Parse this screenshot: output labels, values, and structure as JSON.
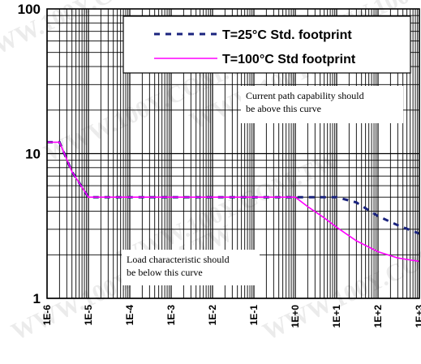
{
  "chart_data": {
    "type": "line",
    "xscale": "log",
    "yscale": "log",
    "xlim": [
      1e-06,
      1000
    ],
    "ylim": [
      1,
      100
    ],
    "grid": true,
    "yticks": [
      1,
      10,
      100
    ],
    "ytick_labels": [
      "1",
      "10",
      "100"
    ],
    "xtick_labels": [
      "1E-6",
      "1E-5",
      "1E-4",
      "1E-3",
      "1E-2",
      "1E-1",
      "1E+0",
      "1E+1",
      "1E+2",
      "1E+3"
    ],
    "legend_position": "top-right",
    "series": [
      {
        "name": "T=25°C  Std. footprint",
        "style": "dashed",
        "color": "#1a237e",
        "x": [
          1e-06,
          2e-06,
          4e-06,
          1e-05,
          0.0001,
          0.001,
          0.01,
          0.1,
          1,
          2,
          5,
          10,
          30,
          100,
          300,
          1000
        ],
        "y": [
          12,
          12,
          7.5,
          5,
          5,
          5,
          5,
          5,
          5,
          5,
          5,
          5,
          4.6,
          3.7,
          3.2,
          2.8
        ]
      },
      {
        "name": "T=100°C Std footprint",
        "style": "solid",
        "color": "#ff00ff",
        "x": [
          1e-06,
          2e-06,
          4e-06,
          1e-05,
          0.0001,
          0.001,
          0.01,
          0.1,
          1,
          2,
          5,
          10,
          30,
          100,
          300,
          1000
        ],
        "y": [
          12,
          12,
          7.5,
          5,
          5,
          5,
          5,
          5,
          5,
          4.3,
          3.6,
          3.1,
          2.5,
          2.1,
          1.9,
          1.8
        ]
      }
    ],
    "annotations": [
      {
        "lines": [
          "Current path capability should",
          "be above this curve"
        ]
      },
      {
        "lines": [
          "Load characteristic should",
          "be below this curve"
        ]
      }
    ]
  },
  "watermark": "WWW.100Y.COM.TW"
}
